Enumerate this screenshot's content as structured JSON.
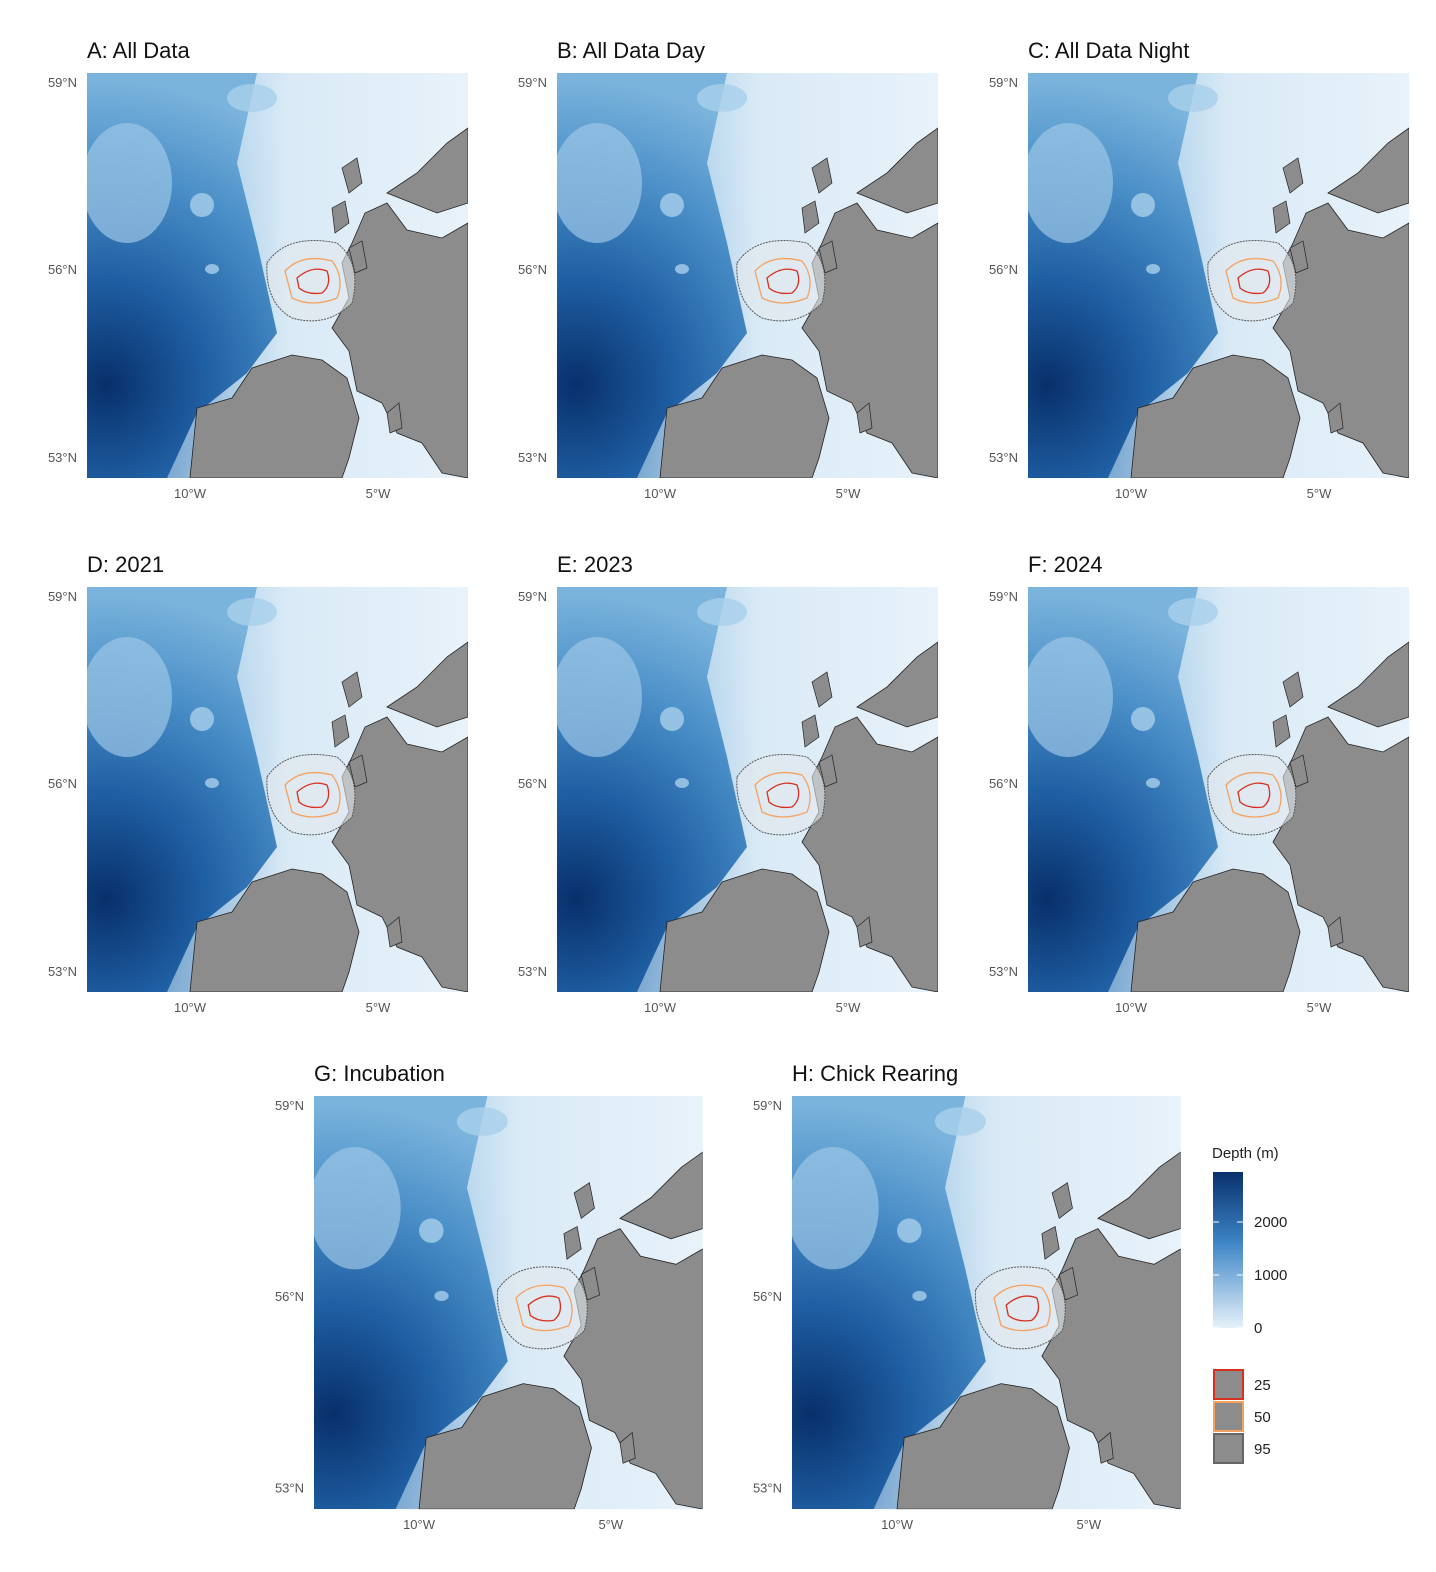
{
  "panels": [
    {
      "title": "A: All Data"
    },
    {
      "title": "B: All Data Day"
    },
    {
      "title": "C: All Data Night"
    },
    {
      "title": "D: 2021"
    },
    {
      "title": "E: 2023"
    },
    {
      "title": "F: 2024"
    },
    {
      "title": "G: Incubation"
    },
    {
      "title": "H: Chick Rearing"
    }
  ],
  "axes": {
    "y_labels": [
      "59°N",
      "56°N",
      "53°N"
    ],
    "x_labels": [
      "10°W",
      "5°W"
    ]
  },
  "legend": {
    "depth": {
      "title": "Depth (m)",
      "ticks": [
        0,
        1000,
        2000
      ]
    },
    "contours": {
      "levels": [
        {
          "level": 25,
          "color": "#d7301f"
        },
        {
          "level": 50,
          "color": "#f4a261"
        },
        {
          "level": 95,
          "color": "#666666"
        }
      ]
    }
  }
}
